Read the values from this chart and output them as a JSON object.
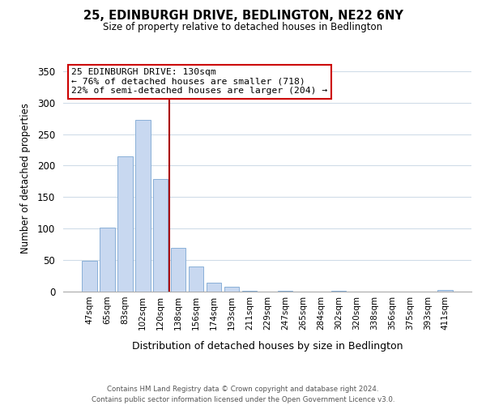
{
  "title": "25, EDINBURGH DRIVE, BEDLINGTON, NE22 6NY",
  "subtitle": "Size of property relative to detached houses in Bedlington",
  "xlabel": "Distribution of detached houses by size in Bedlington",
  "ylabel": "Number of detached properties",
  "bar_labels": [
    "47sqm",
    "65sqm",
    "83sqm",
    "102sqm",
    "120sqm",
    "138sqm",
    "156sqm",
    "174sqm",
    "193sqm",
    "211sqm",
    "229sqm",
    "247sqm",
    "265sqm",
    "284sqm",
    "302sqm",
    "320sqm",
    "338sqm",
    "356sqm",
    "375sqm",
    "393sqm",
    "411sqm"
  ],
  "bar_values": [
    49,
    101,
    215,
    273,
    179,
    69,
    40,
    14,
    8,
    1,
    0,
    1,
    0,
    0,
    1,
    0,
    0,
    0,
    0,
    0,
    2
  ],
  "bar_color": "#c8d8f0",
  "bar_edge_color": "#8ab0d8",
  "vline_x": 4.5,
  "vline_color": "#aa0000",
  "annotation_title": "25 EDINBURGH DRIVE: 130sqm",
  "annotation_line1": "← 76% of detached houses are smaller (718)",
  "annotation_line2": "22% of semi-detached houses are larger (204) →",
  "annotation_box_color": "#ffffff",
  "annotation_box_edge": "#cc0000",
  "footer_line1": "Contains HM Land Registry data © Crown copyright and database right 2024.",
  "footer_line2": "Contains public sector information licensed under the Open Government Licence v3.0.",
  "ylim": [
    0,
    360
  ],
  "yticks": [
    0,
    50,
    100,
    150,
    200,
    250,
    300,
    350
  ],
  "background_color": "#ffffff",
  "grid_color": "#d0dce8"
}
